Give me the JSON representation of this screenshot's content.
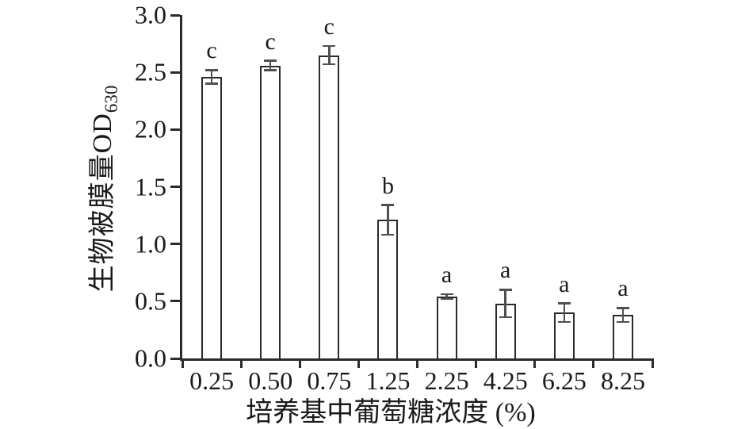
{
  "figure": {
    "background_color": "#ffffff",
    "text_color": "#1a1a1a"
  },
  "chart_data": {
    "type": "bar",
    "title": "",
    "categories": [
      "0.25",
      "0.50",
      "0.75",
      "1.25",
      "2.25",
      "4.25",
      "6.25",
      "8.25"
    ],
    "values": [
      2.46,
      2.56,
      2.65,
      1.21,
      0.54,
      0.48,
      0.4,
      0.38
    ],
    "errors": [
      0.06,
      0.04,
      0.08,
      0.13,
      0.02,
      0.12,
      0.08,
      0.06
    ],
    "sig_letters": [
      "c",
      "c",
      "c",
      "b",
      "a",
      "a",
      "a",
      "a"
    ],
    "xlabel": "培养基中葡萄糖浓度 (%)",
    "ylabel": "生物被膜量OD",
    "ylabel_subscript": "630",
    "ylim": [
      0,
      3.0
    ],
    "ytick_interval": 0.5,
    "ytick_labels": [
      "0.0",
      "0.5",
      "1.0",
      "1.5",
      "2.0",
      "2.5",
      "3.0"
    ],
    "grid": false,
    "legend": "none",
    "bar_fill_color": "#ffffff",
    "bar_border_color": "#2b2b2b",
    "error_bar_color": "#4f4f4f",
    "axis_color": "#2b2b2b"
  }
}
